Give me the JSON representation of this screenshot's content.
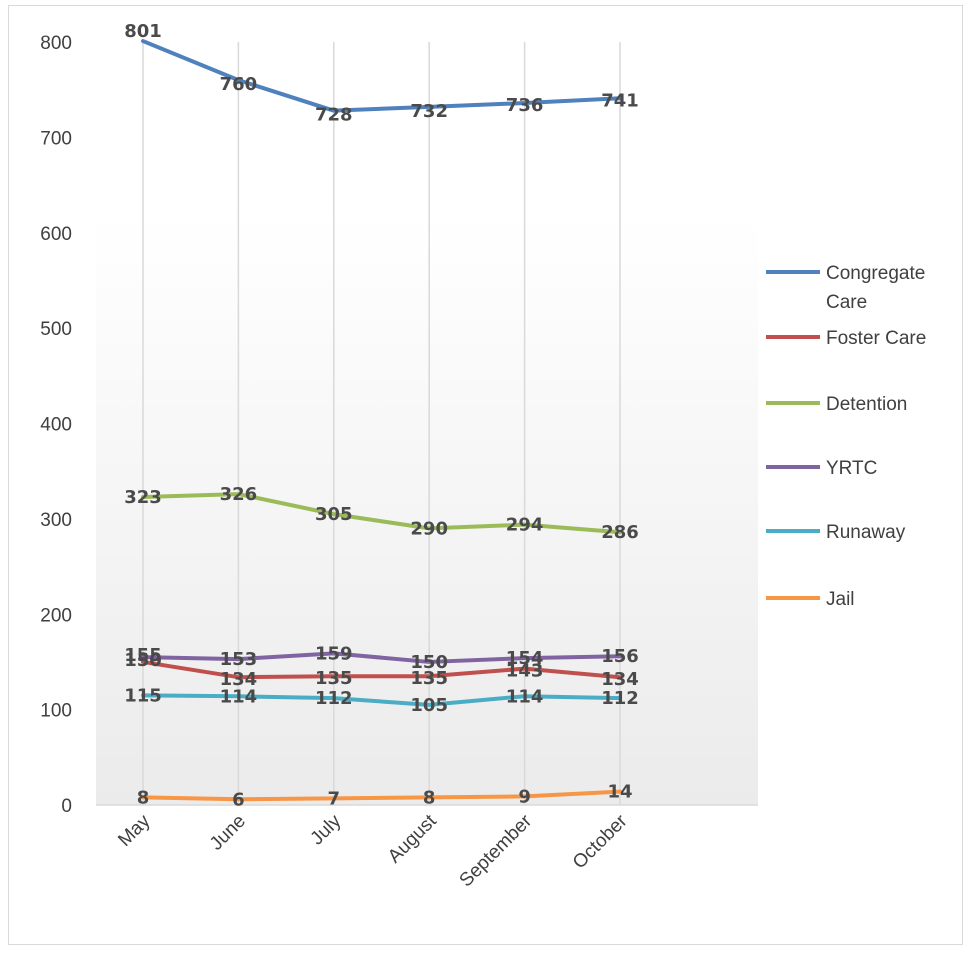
{
  "chart_data": {
    "type": "line",
    "title": "",
    "xlabel": "",
    "ylabel": "",
    "categories": [
      "May",
      "June",
      "July",
      "August",
      "September",
      "October"
    ],
    "ylim": [
      0,
      800
    ],
    "yticks": [
      0,
      100,
      200,
      300,
      400,
      500,
      600,
      700,
      800
    ],
    "grid": "vertical",
    "legend_position": "right",
    "series": [
      {
        "name": "Congregate Care",
        "color": "#4f81bd",
        "values": [
          801,
          760,
          728,
          732,
          736,
          741
        ]
      },
      {
        "name": "Foster Care",
        "color": "#c0504d",
        "values": [
          150,
          134,
          135,
          135,
          143,
          134
        ]
      },
      {
        "name": "Detention",
        "color": "#9bbb59",
        "values": [
          323,
          326,
          305,
          290,
          294,
          286
        ]
      },
      {
        "name": "YRTC",
        "color": "#8064a2",
        "values": [
          155,
          153,
          159,
          150,
          154,
          156
        ]
      },
      {
        "name": "Runaway",
        "color": "#4bacc6",
        "values": [
          115,
          114,
          112,
          105,
          114,
          112
        ]
      },
      {
        "name": "Jail",
        "color": "#f79646",
        "values": [
          8,
          6,
          7,
          8,
          9,
          14
        ]
      }
    ]
  }
}
